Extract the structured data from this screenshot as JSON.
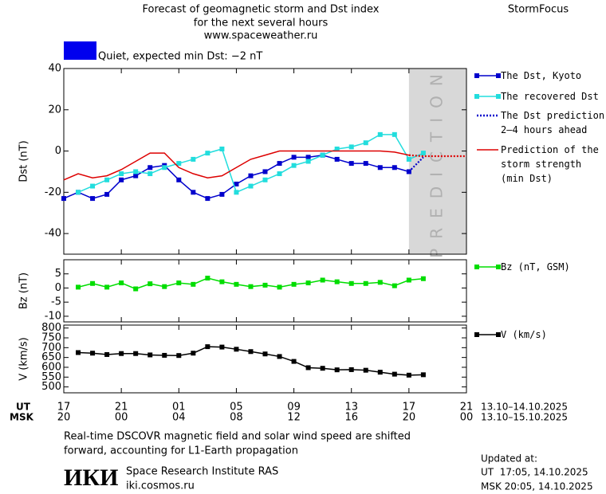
{
  "header": {
    "title_lines": [
      "Forecast of geomagnetic storm and Dst index",
      "for the next several hours",
      "www.spaceweather.ru"
    ],
    "brand": "StormFocus",
    "status": "Quiet, expected min Dst: −2 nT",
    "status_color": "#0000ee"
  },
  "chart_data": [
    {
      "type": "line",
      "ylabel": "Dst (nT)",
      "ylim": [
        -50,
        40
      ],
      "yticks": [
        40,
        20,
        0,
        -20,
        -40
      ],
      "prediction_region": {
        "xlim": [
          24,
          28
        ],
        "label": "PREDICTION",
        "color": "#d8d8d8"
      },
      "series": [
        {
          "name": "The Dst, Kyoto",
          "color": "#0000cc",
          "style": "solid",
          "markers": true,
          "x": [
            0,
            1,
            2,
            3,
            4,
            5,
            6,
            7,
            8,
            9,
            10,
            11,
            12,
            13,
            14,
            15,
            16,
            17,
            18,
            19,
            20,
            21,
            22,
            23,
            24
          ],
          "values": [
            -23,
            -20,
            -23,
            -21,
            -14,
            -12,
            -8,
            -7,
            -14,
            -20,
            -23,
            -21,
            -16,
            -12,
            -10,
            -6,
            -3,
            -3,
            -2,
            -4,
            -6,
            -6,
            -8,
            -8,
            -10
          ]
        },
        {
          "name": "The recovered Dst",
          "color": "#22dddd",
          "style": "solid",
          "markers": true,
          "x": [
            1,
            2,
            3,
            4,
            5,
            6,
            7,
            8,
            9,
            10,
            11,
            12,
            13,
            14,
            15,
            16,
            17,
            18,
            19,
            20,
            21,
            22,
            23,
            24,
            25
          ],
          "values": [
            -20,
            -17,
            -14,
            -11,
            -10,
            -11,
            -8,
            -6,
            -4,
            -1,
            1,
            -20,
            -17,
            -14,
            -11,
            -7,
            -5,
            -2,
            1,
            2,
            4,
            8,
            8,
            -4,
            -1
          ]
        },
        {
          "name": "The Dst prediction 2–4 hours ahead",
          "color": "#0000cc",
          "style": "dotted",
          "markers": false,
          "x": [
            24,
            25
          ],
          "values": [
            -10,
            -3
          ]
        },
        {
          "name": "Prediction of the storm strength (min Dst)",
          "color": "#dd0000",
          "style": "solid",
          "markers": false,
          "x": [
            0,
            1,
            2,
            3,
            4,
            5,
            6,
            7,
            8,
            9,
            10,
            11,
            12,
            13,
            14,
            15,
            16,
            17,
            18,
            19,
            20,
            21,
            22,
            23,
            24,
            25,
            26,
            27,
            28
          ],
          "values": [
            -14,
            -11,
            -13,
            -12,
            -9,
            -5,
            -1,
            -1,
            -8,
            -11,
            -13,
            -12,
            -8,
            -4,
            -2,
            0,
            0,
            0,
            0,
            0,
            0,
            0,
            0,
            -0.5,
            -2,
            -2.5,
            -2.5,
            -2.5,
            -2.5
          ]
        }
      ]
    },
    {
      "type": "line",
      "ylabel": "Bz (nT)",
      "ylim": [
        -12,
        10
      ],
      "yticks": [
        5,
        0,
        -5,
        -10
      ],
      "series": [
        {
          "name": "Bz (nT, GSM)",
          "color": "#00dd00",
          "style": "solid",
          "markers": true,
          "x": [
            1,
            2,
            3,
            4,
            5,
            6,
            7,
            8,
            9,
            10,
            11,
            12,
            13,
            14,
            15,
            16,
            17,
            18,
            19,
            20,
            21,
            22,
            23,
            24,
            25
          ],
          "values": [
            0.3,
            1.6,
            0.3,
            1.8,
            -0.3,
            1.5,
            0.5,
            1.8,
            1.3,
            3.5,
            2.2,
            1.3,
            0.5,
            1,
            0.3,
            1.3,
            1.8,
            2.8,
            2.2,
            1.6,
            1.6,
            2,
            0.8,
            2.8,
            3.3
          ]
        }
      ]
    },
    {
      "type": "line",
      "ylabel": "V (km/s)",
      "ylim": [
        470,
        815
      ],
      "yticks": [
        800,
        750,
        700,
        650,
        600,
        550,
        500
      ],
      "xlim": [
        0,
        28
      ],
      "xticks": [
        {
          "value": 0,
          "label": "17"
        },
        {
          "value": 4,
          "label": "21"
        },
        {
          "value": 8,
          "label": "01"
        },
        {
          "value": 12,
          "label": "05"
        },
        {
          "value": 16,
          "label": "09"
        },
        {
          "value": 20,
          "label": "13"
        },
        {
          "value": 24,
          "label": "17"
        },
        {
          "value": 28,
          "label": "21"
        }
      ],
      "x_labels_msk": [
        "20",
        "00",
        "04",
        "08",
        "12",
        "16",
        "20",
        "00"
      ],
      "ut_label": "UT",
      "msk_label": "MSK",
      "ut_range": "13.10–14.10.2025",
      "msk_range": "13.10–15.10.2025",
      "series": [
        {
          "name": "V (km/s)",
          "color": "#000000",
          "style": "solid",
          "markers": true,
          "x": [
            1,
            2,
            3,
            4,
            5,
            6,
            7,
            8,
            9,
            10,
            11,
            12,
            13,
            14,
            15,
            16,
            17,
            18,
            19,
            20,
            21,
            22,
            23,
            24,
            25
          ],
          "values": [
            675,
            672,
            665,
            670,
            670,
            663,
            661,
            660,
            672,
            705,
            703,
            692,
            680,
            668,
            655,
            630,
            598,
            595,
            587,
            588,
            585,
            575,
            565,
            560,
            562
          ]
        }
      ]
    }
  ],
  "footer": {
    "note_lines": [
      "Real-time DSCOVR magnetic field and solar wind speed are shifted",
      "forward, accounting for L1-Earth propagation"
    ],
    "logo": "ИКИ",
    "institute": "Space Research Institute RAS",
    "site": "iki.cosmos.ru",
    "updated_title": "Updated at:",
    "updated_ut": "UT  17:05, 14.10.2025",
    "updated_msk": "MSK 20:05, 14.10.2025"
  }
}
